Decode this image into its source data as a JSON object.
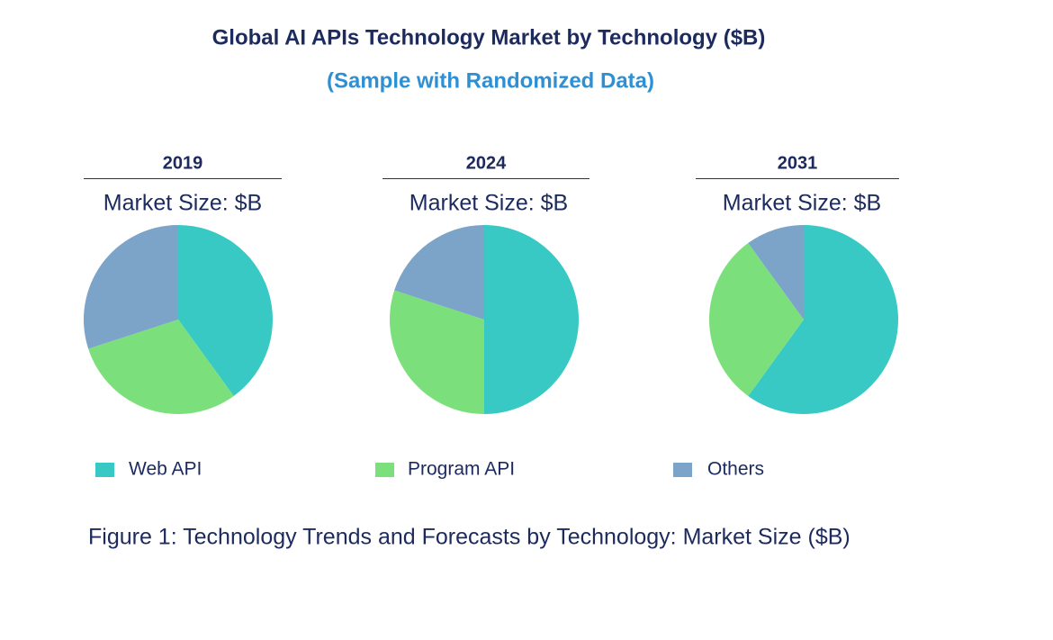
{
  "title": "Global AI APIs Technology Market by Technology ($B)",
  "subtitle": "(Sample with Randomized Data)",
  "caption": "Figure 1: Technology Trends and Forecasts by Technology: Market Size ($B)",
  "chart_data": [
    {
      "type": "pie",
      "title": "2019",
      "subtitle": "Market Size: $B",
      "categories": [
        "Web API",
        "Program API",
        "Others"
      ],
      "values": [
        40,
        30,
        30
      ],
      "colors": [
        "#38c9c4",
        "#7be07b",
        "#7ca3c8"
      ]
    },
    {
      "type": "pie",
      "title": "2024",
      "subtitle": "Market Size: $B",
      "categories": [
        "Web API",
        "Program API",
        "Others"
      ],
      "values": [
        50,
        30,
        20
      ],
      "colors": [
        "#38c9c4",
        "#7be07b",
        "#7ca3c8"
      ]
    },
    {
      "type": "pie",
      "title": "2031",
      "subtitle": "Market Size: $B",
      "categories": [
        "Web API",
        "Program API",
        "Others"
      ],
      "values": [
        60,
        30,
        10
      ],
      "colors": [
        "#38c9c4",
        "#7be07b",
        "#7ca3c8"
      ]
    }
  ]
}
